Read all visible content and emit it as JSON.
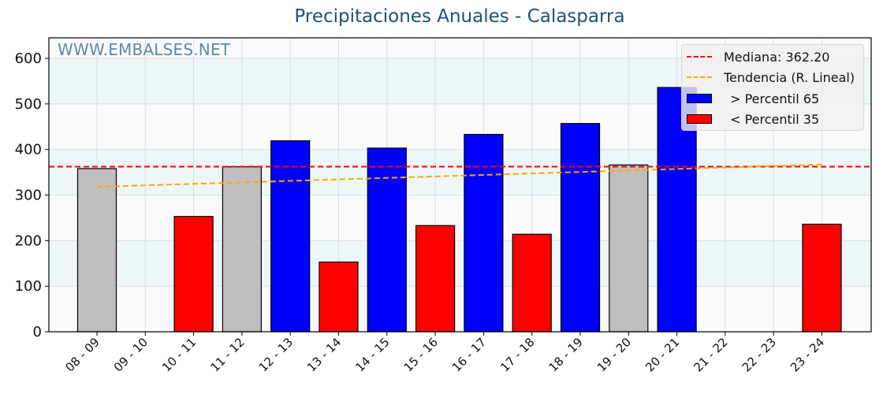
{
  "chart_data": {
    "type": "bar",
    "title": "Precipitaciones Anuales - Calasparra",
    "watermark": "WWW.EMBALSES.NET",
    "xlabel": "",
    "ylabel": "",
    "ylim": [
      0,
      645
    ],
    "yticks": [
      0,
      100,
      200,
      300,
      400,
      500,
      600
    ],
    "grid": true,
    "legend_position": "upper right",
    "categories": [
      "08 - 09",
      "09 - 10",
      "10 - 11",
      "11 - 12",
      "12 - 13",
      "13 - 14",
      "14 - 15",
      "15 - 16",
      "16 - 17",
      "17 - 18",
      "18 - 19",
      "19 - 20",
      "20 - 21",
      "21 - 22",
      "22 - 23",
      "23 - 24"
    ],
    "values": [
      358,
      null,
      253,
      362,
      419,
      153,
      403,
      233,
      433,
      214,
      457,
      366,
      536,
      null,
      null,
      236
    ],
    "bar_class": [
      "mid",
      "none",
      "low",
      "mid",
      "high",
      "low",
      "high",
      "low",
      "high",
      "low",
      "high",
      "mid",
      "high",
      "none",
      "none",
      "low"
    ],
    "colors": {
      "high": "#0000ff",
      "low": "#ff0000",
      "mid": "#bebebe",
      "median": "#ff0000",
      "trend": "#ffa500",
      "title": "#1a5276",
      "band": "#eef6f9"
    },
    "median": {
      "value": 362.2,
      "label": "Mediana: 362.20"
    },
    "trend": {
      "label": "Tendencia (R. Lineal)",
      "start": 318,
      "end": 367
    },
    "legend": [
      {
        "label": "Mediana: 362.20",
        "kind": "line",
        "color": "#ff0000"
      },
      {
        "label": "Tendencia (R. Lineal)",
        "kind": "line",
        "color": "#ffa500"
      },
      {
        "label": " > Percentil 65",
        "kind": "patch",
        "color": "#0000ff"
      },
      {
        "label": " < Percentil 35",
        "kind": "patch",
        "color": "#ff0000"
      }
    ]
  }
}
